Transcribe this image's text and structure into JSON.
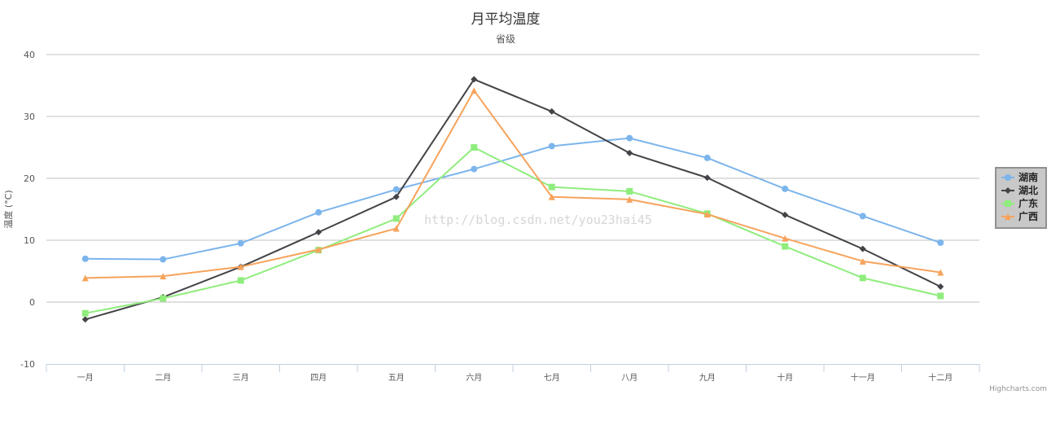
{
  "chart_data": {
    "type": "line",
    "title": "月平均温度",
    "subtitle": "省级",
    "ylabel": "温度 (°C)",
    "xlabel": "",
    "ylim": [
      -10,
      40
    ],
    "yticks": [
      -10,
      0,
      10,
      20,
      30,
      40
    ],
    "grid": true,
    "legend_position": "right",
    "categories": [
      "一月",
      "二月",
      "三月",
      "四月",
      "五月",
      "六月",
      "七月",
      "八月",
      "九月",
      "十月",
      "十一月",
      "十二月"
    ],
    "series": [
      {
        "name": "湖南",
        "color": "#7cb5ec",
        "marker": "circle",
        "values": [
          7.0,
          6.9,
          9.5,
          14.5,
          18.2,
          21.5,
          25.2,
          26.5,
          23.3,
          18.3,
          13.9,
          9.6
        ]
      },
      {
        "name": "湖北",
        "color": "#434348",
        "marker": "diamond",
        "values": [
          -2.8,
          0.8,
          5.7,
          11.3,
          17.0,
          36.0,
          30.8,
          24.1,
          20.1,
          14.1,
          8.6,
          2.5
        ]
      },
      {
        "name": "广东",
        "color": "#90ed7d",
        "marker": "square",
        "values": [
          -1.8,
          0.6,
          3.5,
          8.4,
          13.5,
          25.0,
          18.6,
          17.9,
          14.3,
          9.0,
          3.9,
          1.0
        ]
      },
      {
        "name": "广西",
        "color": "#f7a35c",
        "marker": "triangle",
        "values": [
          3.9,
          4.2,
          5.7,
          8.5,
          11.9,
          34.2,
          17.0,
          16.6,
          14.2,
          10.3,
          6.6,
          4.8
        ]
      }
    ]
  },
  "watermark": "http://blog.csdn.net/you23hai45",
  "credits": "Highcharts.com"
}
